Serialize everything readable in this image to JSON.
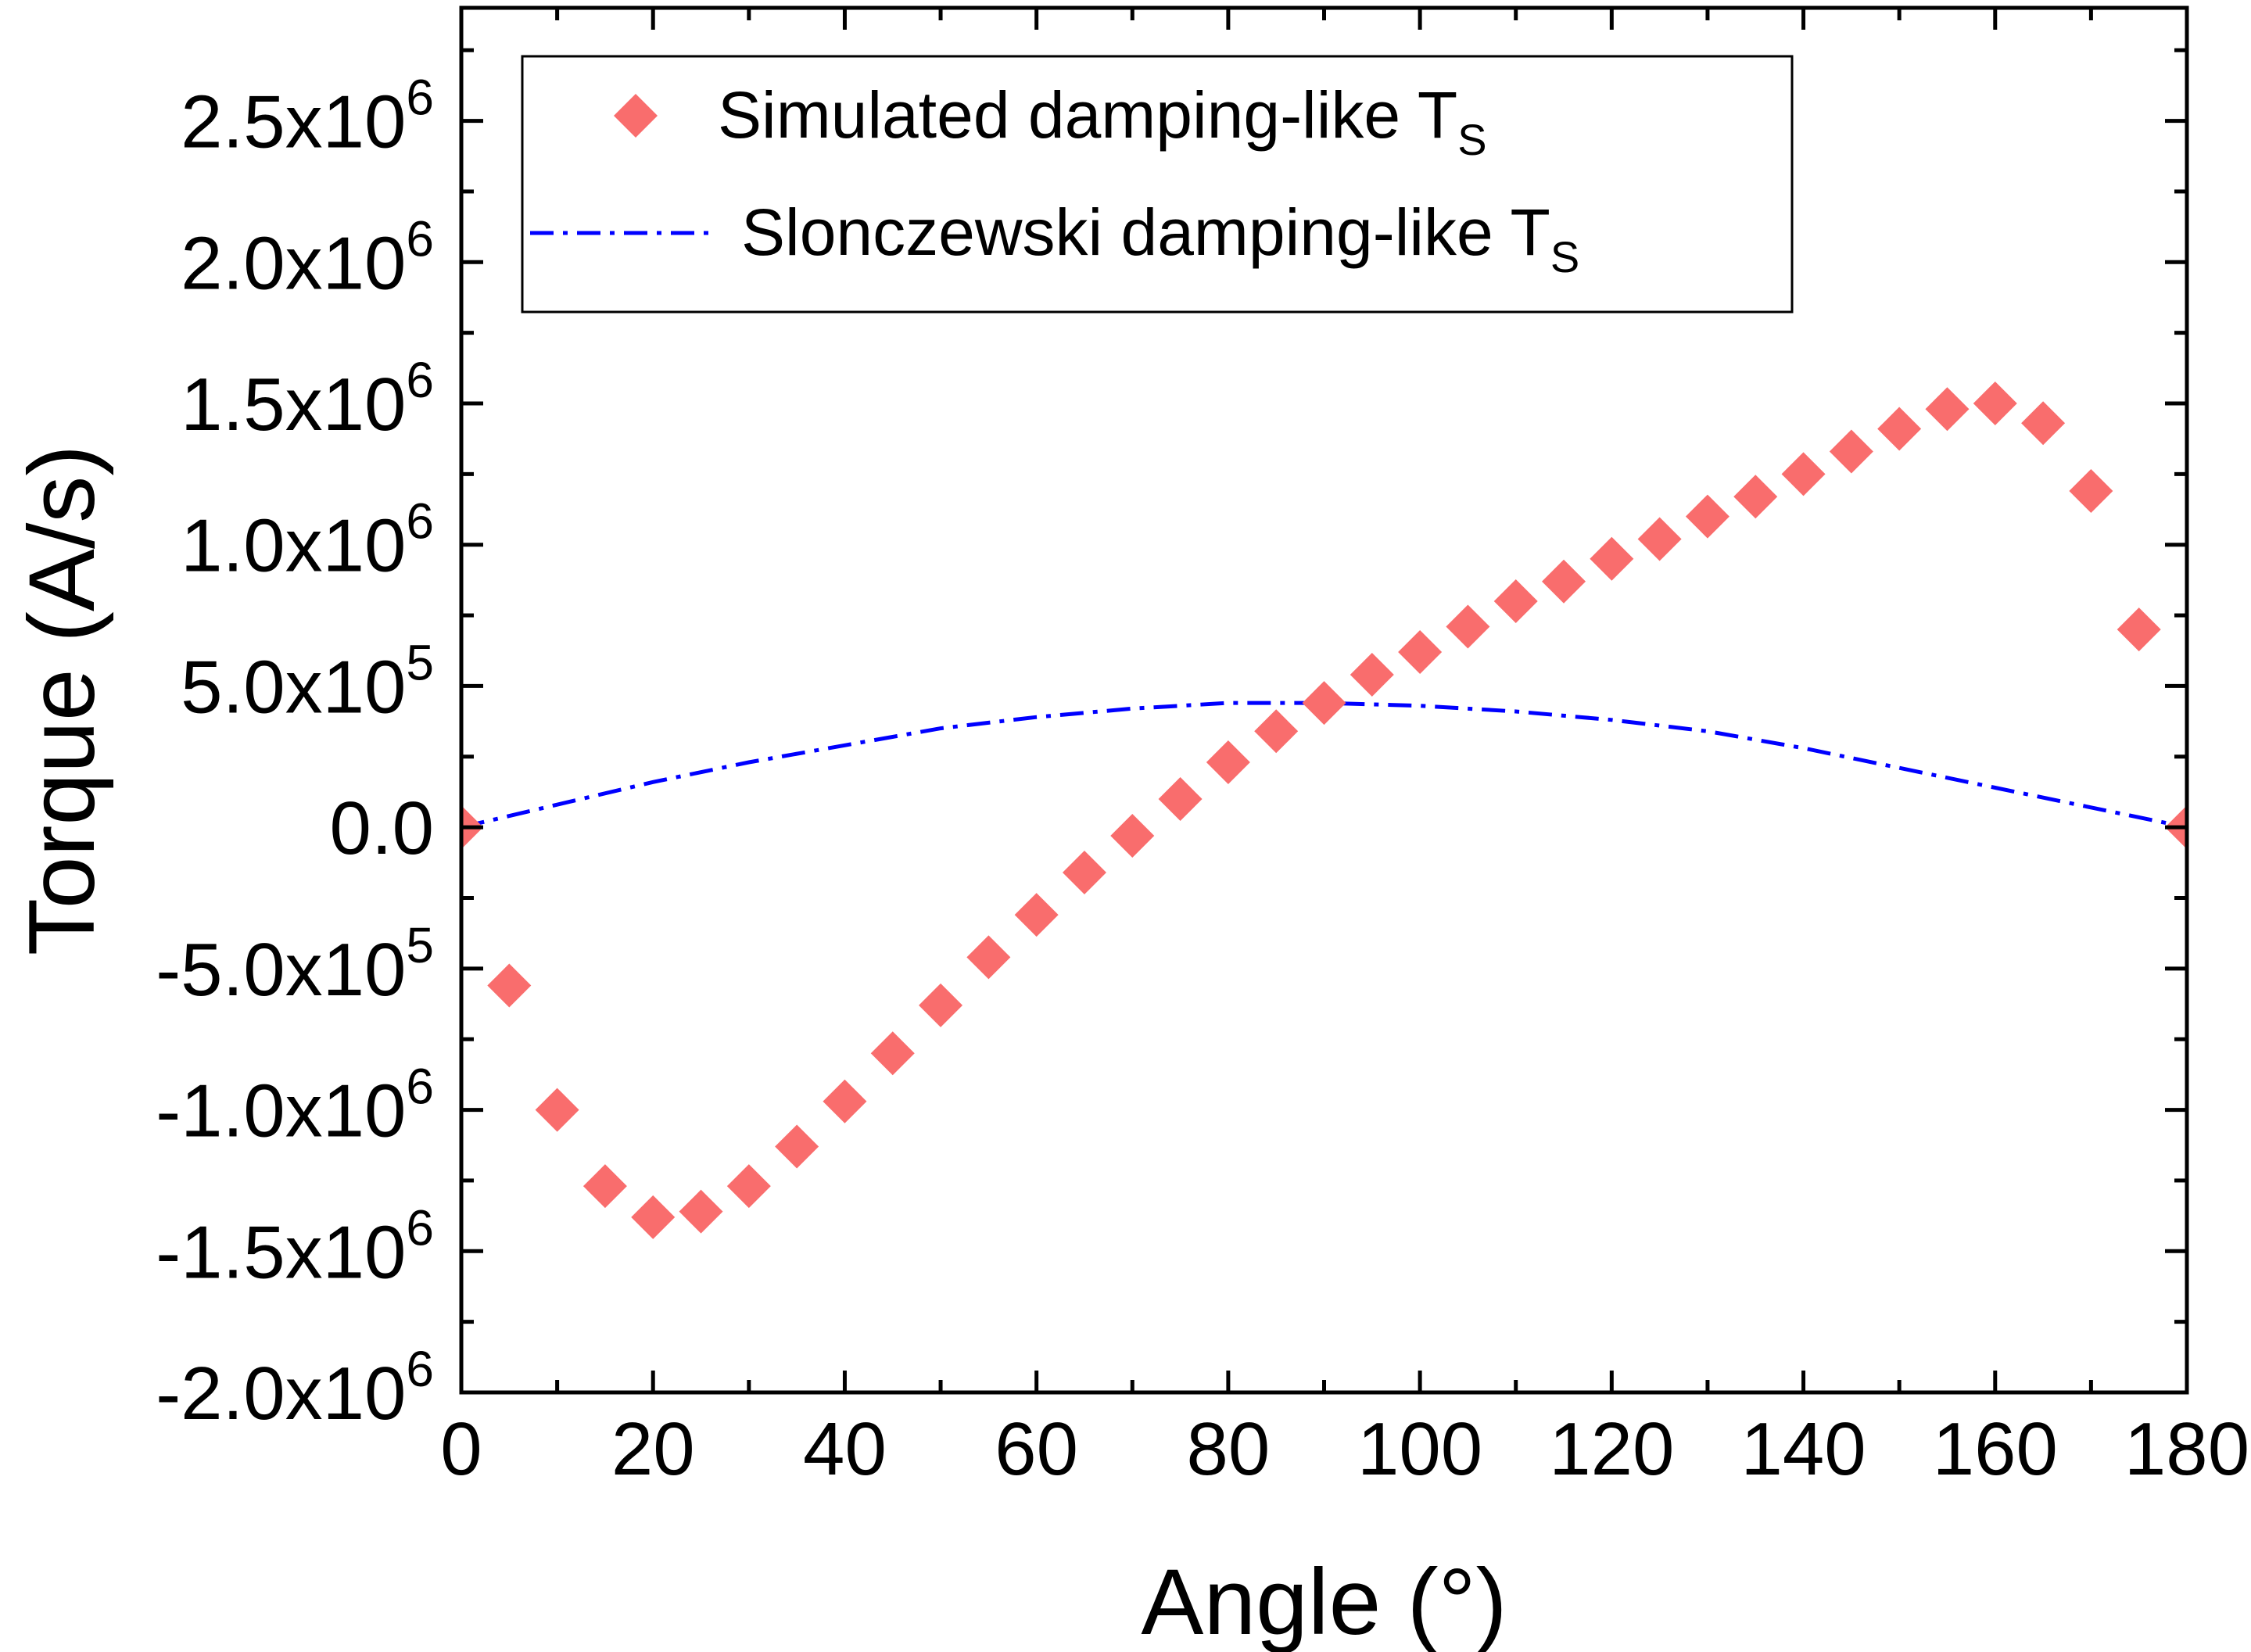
{
  "chart_data": {
    "type": "scatter",
    "title": "",
    "xlabel": "Angle (°)",
    "ylabel": "Torque (A/s)",
    "xlim": [
      0,
      180
    ],
    "ylim": [
      -2000000,
      2900000
    ],
    "grid": false,
    "legend_position": "top-left",
    "x_ticks": [
      0,
      20,
      40,
      60,
      80,
      100,
      120,
      140,
      160,
      180
    ],
    "x_tick_labels": [
      "0",
      "20",
      "40",
      "60",
      "80",
      "100",
      "120",
      "140",
      "160",
      "180"
    ],
    "y_ticks": [
      {
        "value": 2500000,
        "mantissa": "2.5x10",
        "exponent": "6"
      },
      {
        "value": 2000000,
        "mantissa": "2.0x10",
        "exponent": "6"
      },
      {
        "value": 1500000,
        "mantissa": "1.5x10",
        "exponent": "6"
      },
      {
        "value": 1000000,
        "mantissa": "1.0x10",
        "exponent": "6"
      },
      {
        "value": 500000,
        "mantissa": "5.0x10",
        "exponent": "5"
      },
      {
        "value": 0,
        "mantissa": "0.0",
        "exponent": ""
      },
      {
        "value": -500000,
        "mantissa": "-5.0x10",
        "exponent": "5"
      },
      {
        "value": -1000000,
        "mantissa": "-1.0x10",
        "exponent": "6"
      },
      {
        "value": -1500000,
        "mantissa": "-1.5x10",
        "exponent": "6"
      },
      {
        "value": -2000000,
        "mantissa": "-2.0x10",
        "exponent": "6"
      }
    ],
    "series": [
      {
        "name": "Simulated damping-like T",
        "name_subscript": "S",
        "kind": "scatter",
        "marker": "diamond",
        "color": "#f96d6d",
        "x": [
          0,
          5,
          10,
          15,
          20,
          25,
          30,
          35,
          40,
          45,
          50,
          55,
          60,
          65,
          70,
          75,
          80,
          85,
          90,
          95,
          100,
          105,
          110,
          115,
          120,
          125,
          130,
          135,
          140,
          145,
          150,
          155,
          160,
          165,
          170,
          175,
          180
        ],
        "y": [
          0,
          -560000,
          -1000000,
          -1270000,
          -1380000,
          -1360000,
          -1270000,
          -1130000,
          -970000,
          -800000,
          -630000,
          -460000,
          -310000,
          -160000,
          -30000,
          100000,
          230000,
          340000,
          440000,
          540000,
          620000,
          710000,
          800000,
          870000,
          950000,
          1020000,
          1100000,
          1170000,
          1250000,
          1330000,
          1410000,
          1480000,
          1500000,
          1430000,
          1190000,
          700000,
          0
        ]
      },
      {
        "name": "Slonczewski damping-like T",
        "name_subscript": "S",
        "kind": "line",
        "line_style": "dash-dot",
        "color": "#0000ff",
        "x": [
          0,
          10,
          20,
          30,
          40,
          50,
          60,
          70,
          80,
          90,
          100,
          110,
          120,
          130,
          140,
          150,
          160,
          170,
          180
        ],
        "y": [
          0,
          80000,
          160000,
          230000,
          290000,
          350000,
          390000,
          420000,
          440000,
          440000,
          430000,
          410000,
          380000,
          340000,
          280000,
          210000,
          140000,
          70000,
          0
        ]
      }
    ]
  }
}
